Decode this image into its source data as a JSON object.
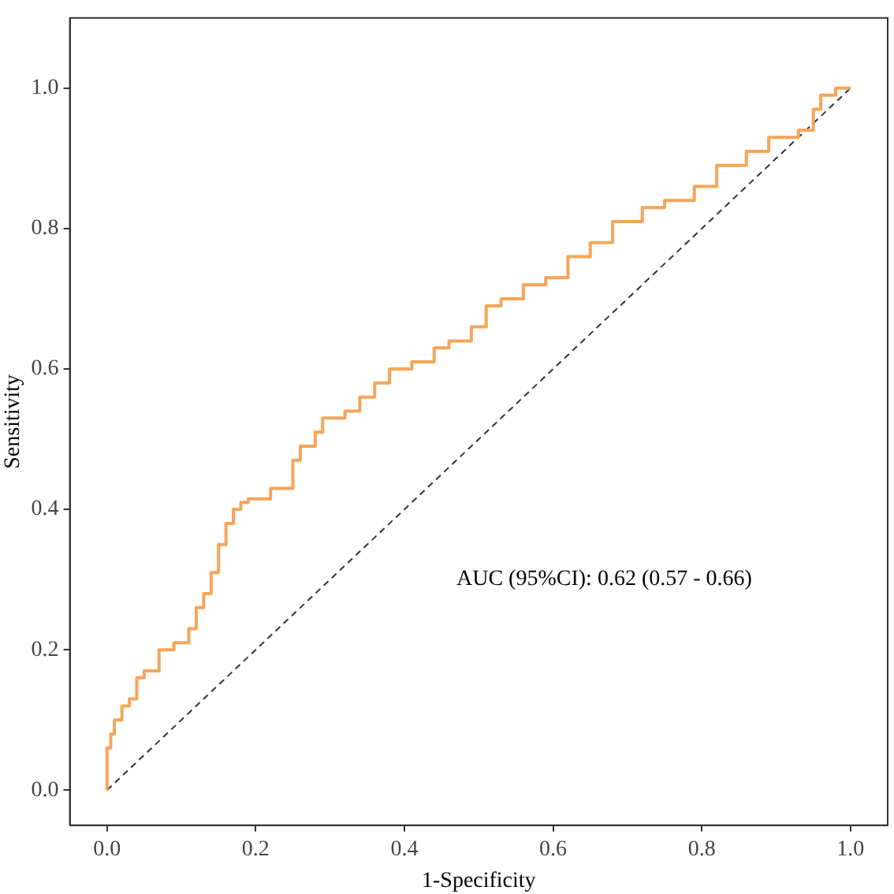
{
  "chart_data": {
    "type": "step",
    "xlabel": "1-Specificity",
    "ylabel": "Sensitivity",
    "xlim": [
      -0.05,
      1.05
    ],
    "ylim": [
      -0.05,
      1.1
    ],
    "xticks": [
      {
        "value": 0,
        "label": "0.0"
      },
      {
        "value": 0.2,
        "label": "0.2"
      },
      {
        "value": 0.4,
        "label": "0.4"
      },
      {
        "value": 0.6,
        "label": "0.6"
      },
      {
        "value": 0.8,
        "label": "0.8"
      },
      {
        "value": 1,
        "label": "1.0"
      }
    ],
    "yticks": [
      {
        "value": 0,
        "label": "0.0"
      },
      {
        "value": 0.2,
        "label": "0.2"
      },
      {
        "value": 0.4,
        "label": "0.4"
      },
      {
        "value": 0.6,
        "label": "0.6"
      },
      {
        "value": 0.8,
        "label": "0.8"
      },
      {
        "value": 1,
        "label": "1.0"
      }
    ],
    "grid": false,
    "legend": false,
    "series": [
      {
        "color": "#f5a55a",
        "line_style": "solid",
        "x": [
          0,
          0,
          0.005,
          0.01,
          0.02,
          0.03,
          0.04,
          0.05,
          0.07,
          0.09,
          0.11,
          0.12,
          0.13,
          0.14,
          0.15,
          0.16,
          0.17,
          0.18,
          0.19,
          0.22,
          0.25,
          0.26,
          0.28,
          0.29,
          0.32,
          0.34,
          0.36,
          0.38,
          0.41,
          0.44,
          0.46,
          0.49,
          0.51,
          0.53,
          0.56,
          0.59,
          0.62,
          0.65,
          0.68,
          0.72,
          0.75,
          0.79,
          0.82,
          0.86,
          0.89,
          0.93,
          0.95,
          0.96,
          0.98,
          1
        ],
        "values": [
          0,
          0.04,
          0.06,
          0.08,
          0.1,
          0.12,
          0.13,
          0.16,
          0.17,
          0.2,
          0.21,
          0.23,
          0.26,
          0.28,
          0.31,
          0.35,
          0.38,
          0.4,
          0.41,
          0.415,
          0.43,
          0.47,
          0.49,
          0.51,
          0.53,
          0.54,
          0.56,
          0.58,
          0.6,
          0.61,
          0.63,
          0.64,
          0.66,
          0.69,
          0.7,
          0.72,
          0.73,
          0.76,
          0.78,
          0.81,
          0.83,
          0.84,
          0.86,
          0.89,
          0.91,
          0.93,
          0.94,
          0.97,
          0.99,
          1
        ]
      },
      {
        "type": "line",
        "color": "#333333",
        "line_style": "dashed",
        "x": [
          0,
          1
        ],
        "values": [
          0,
          1
        ]
      }
    ],
    "annotations": [
      "AUC (95%CI): 0.62 (0.57 - 0.66)"
    ]
  }
}
